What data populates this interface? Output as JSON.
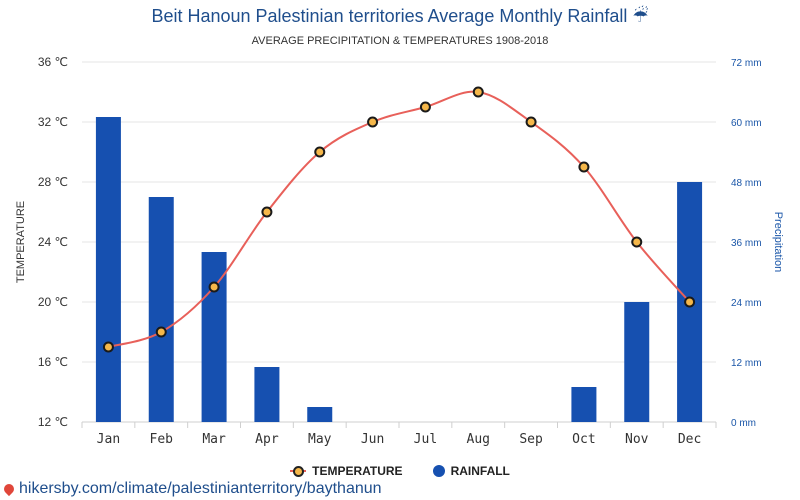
{
  "header": {
    "title": "Beit Hanoun Palestinian territories Average Monthly Rainfall ☔",
    "subtitle": "AVERAGE PRECIPITATION & TEMPERATURES 1908-2018"
  },
  "legend": {
    "temperature_label": "TEMPERATURE",
    "rainfall_label": "RAINFALL"
  },
  "footer": {
    "link_text": "hikersby.com/climate/palestinianterritory/baythanun"
  },
  "colors": {
    "rain_bar": "#1650b0",
    "temp_line": "#e8605a",
    "temp_marker": "#f5b74a",
    "title": "#1f4e8c"
  },
  "chart_data": {
    "type": "bar+line",
    "categories": [
      "Jan",
      "Feb",
      "Mar",
      "Apr",
      "May",
      "Jun",
      "Jul",
      "Aug",
      "Sep",
      "Oct",
      "Nov",
      "Dec"
    ],
    "series": [
      {
        "name": "RAINFALL",
        "type": "bar",
        "axis": "right",
        "unit": "mm",
        "values": [
          61,
          45,
          34,
          11,
          3,
          0,
          0,
          0,
          0,
          7,
          24,
          48
        ]
      },
      {
        "name": "TEMPERATURE",
        "type": "line",
        "axis": "left",
        "unit": "℃",
        "values": [
          17,
          18,
          21,
          26,
          30,
          32,
          33,
          34,
          32,
          29,
          24,
          20
        ]
      }
    ],
    "ylabel_left": "TEMPERATURE",
    "ylabel_right": "Precipitation",
    "ylim_left": [
      12,
      36
    ],
    "ylim_right": [
      0,
      72
    ],
    "yticks_left": [
      "12 ℃",
      "16 ℃",
      "20 ℃",
      "24 ℃",
      "28 ℃",
      "32 ℃",
      "36 ℃"
    ],
    "yticks_right": [
      "0 mm",
      "12 mm",
      "24 mm",
      "36 mm",
      "48 mm",
      "60 mm",
      "72 mm"
    ],
    "grid": true,
    "legend_position": "bottom"
  }
}
